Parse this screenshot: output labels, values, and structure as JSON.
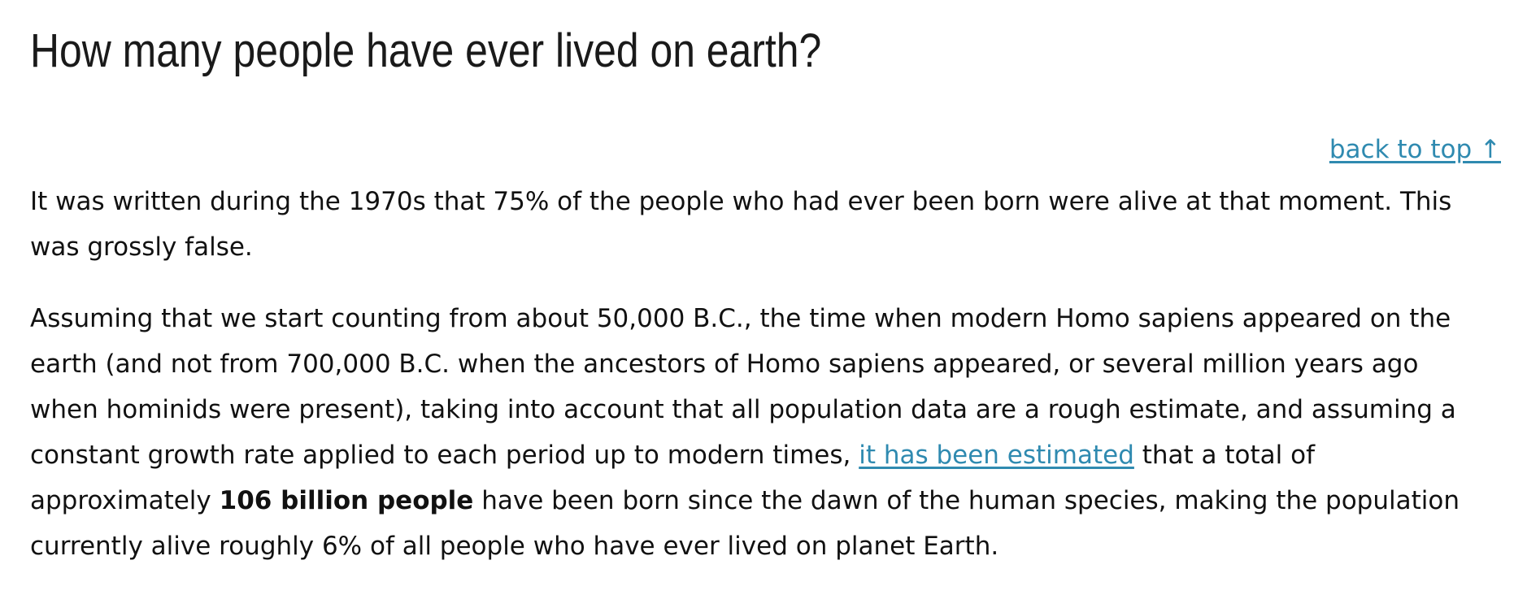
{
  "header": {
    "title": "How many people have ever lived on earth?"
  },
  "nav": {
    "back_to_top": "back to top ↑"
  },
  "paragraphs": {
    "p1": "It was written during the 1970s that 75% of the people who had ever been born were alive at that moment. This was grossly false.",
    "p2_before_link": "Assuming that we start counting from about 50,000 B.C., the time when modern Homo sapiens appeared on the earth (and not from 700,000 B.C. when the ancestors of Homo sapiens appeared, or several million years ago when hominids were present), taking into account that all population data are a rough estimate, and assuming a constant growth rate applied to each period up to modern times, ",
    "p2_link": "it has been estimated",
    "p2_after_link": " that a total of approximately ",
    "p2_bold": "106 billion people",
    "p2_end": " have been born since the dawn of the human species, making the population currently alive roughly 6% of all people who have ever lived on planet Earth."
  },
  "colors": {
    "link": "#2f8ab0",
    "text": "#111111"
  }
}
